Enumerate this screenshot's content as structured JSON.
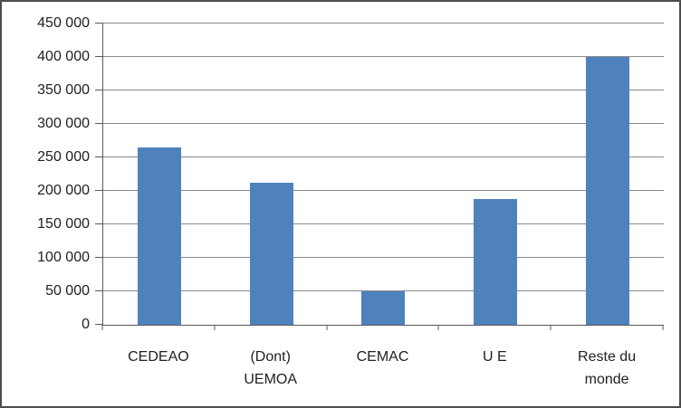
{
  "frame": {
    "background_color": "#ffffff",
    "border_color": "#4d4d4d"
  },
  "chart_data": {
    "type": "bar",
    "title": "",
    "categories": [
      "CEDEAO",
      "(Dont) UEMOA",
      "CEMAC",
      "U E",
      "Reste du monde"
    ],
    "values": [
      265000,
      212000,
      50000,
      188000,
      400000
    ],
    "ylim": [
      0,
      450000
    ],
    "ytick_step": 50000,
    "ytick_labels": [
      "0",
      "50 000",
      "100 000",
      "150 000",
      "200 000",
      "250 000",
      "300 000",
      "350 000",
      "400 000",
      "450 000"
    ],
    "xlabel": "",
    "ylabel": "",
    "grid": true,
    "legend": false,
    "bar_color": "#4f81bd",
    "gridline_color": "#8a8a8a",
    "axis_color": "#595959",
    "text_color": "#212121"
  }
}
